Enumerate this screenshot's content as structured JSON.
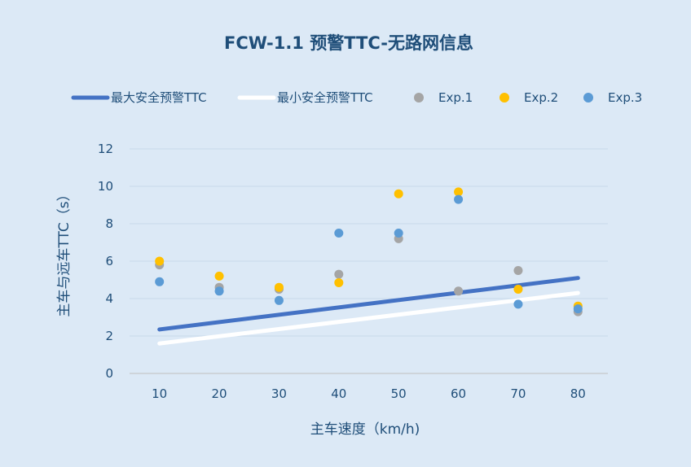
{
  "chart_data": {
    "type": "scatter",
    "title": "FCW-1.1 预警TTC-无路网信息",
    "xlabel": "主车速度（km/h)",
    "ylabel": "主车与远车TTC（s）",
    "x_ticks": [
      10,
      20,
      30,
      40,
      50,
      60,
      70,
      80
    ],
    "y_ticks": [
      0,
      2,
      4,
      6,
      8,
      10,
      12
    ],
    "xlim": [
      5,
      85
    ],
    "ylim": [
      0,
      12
    ],
    "grid": "horizontal",
    "legend_position": "top",
    "background_color": "#dce9f6",
    "lines": [
      {
        "name": "最大安全预警TTC",
        "color": "#4472c4",
        "points": [
          [
            10,
            2.35
          ],
          [
            80,
            5.1
          ]
        ]
      },
      {
        "name": "最小安全预警TTC",
        "color": "#ffffff",
        "points": [
          [
            10,
            1.6
          ],
          [
            80,
            4.3
          ]
        ]
      }
    ],
    "series": [
      {
        "name": "Exp.1",
        "color": "#a5a5a5",
        "points": [
          [
            10,
            5.8
          ],
          [
            20,
            4.6
          ],
          [
            30,
            4.5
          ],
          [
            40,
            5.3
          ],
          [
            50,
            7.2
          ],
          [
            60,
            4.4
          ],
          [
            70,
            5.5
          ],
          [
            80,
            3.3
          ]
        ]
      },
      {
        "name": "Exp.2",
        "color": "#ffc000",
        "points": [
          [
            10,
            6.0
          ],
          [
            20,
            5.2
          ],
          [
            30,
            4.6
          ],
          [
            40,
            4.85
          ],
          [
            50,
            9.6
          ],
          [
            60,
            9.7
          ],
          [
            70,
            4.5
          ],
          [
            80,
            3.6
          ]
        ]
      },
      {
        "name": "Exp.3",
        "color": "#5b9bd5",
        "points": [
          [
            10,
            4.9
          ],
          [
            20,
            4.4
          ],
          [
            30,
            3.9
          ],
          [
            40,
            7.5
          ],
          [
            50,
            7.5
          ],
          [
            60,
            9.3
          ],
          [
            70,
            3.7
          ],
          [
            80,
            3.45
          ]
        ]
      }
    ]
  }
}
